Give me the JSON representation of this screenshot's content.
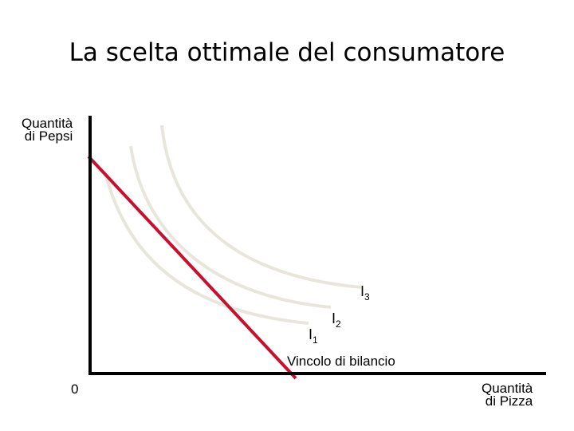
{
  "title": "La scelta ottimale del consumatore",
  "y_axis_label": [
    "Quantità",
    "di Pepsi"
  ],
  "x_axis_label": [
    "Quantità",
    "di Pizza"
  ],
  "origin_label": "0",
  "indifference_curves": [
    {
      "letter": "I",
      "index": "1"
    },
    {
      "letter": "I",
      "index": "2"
    },
    {
      "letter": "I",
      "index": "3"
    }
  ],
  "budget_line_label": "Vincolo di bilancio",
  "colors": {
    "axes": "#000000",
    "budget_line": "#c8102e",
    "indifference_curves": "#e8e6dc"
  }
}
